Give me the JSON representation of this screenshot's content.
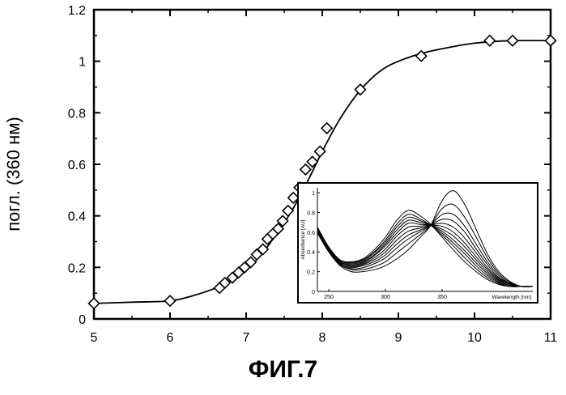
{
  "chart_data": [
    {
      "type": "scatter",
      "title": "",
      "caption": "ФИГ.7",
      "xlabel": "",
      "ylabel": "погл. (360 нм)",
      "xlim": [
        5,
        11
      ],
      "ylim": [
        0,
        1.2
      ],
      "xticks": [
        "5",
        "6",
        "7",
        "8",
        "9",
        "10",
        "11"
      ],
      "yticks": [
        "0",
        "0.2",
        "0.4",
        "0.6",
        "0.8",
        "1",
        "1.2"
      ],
      "marker": "diamond",
      "fit_curve": "sigmoid",
      "series": [
        {
          "x": [
            5.0,
            6.0,
            6.65,
            6.72,
            6.82,
            6.9,
            6.98,
            7.06,
            7.14,
            7.22,
            7.28,
            7.35,
            7.42,
            7.48,
            7.55,
            7.62,
            7.7,
            7.78,
            7.87,
            7.97,
            8.06,
            8.5,
            9.3,
            10.2,
            10.5,
            11.0
          ],
          "y": [
            0.06,
            0.07,
            0.12,
            0.14,
            0.16,
            0.18,
            0.2,
            0.22,
            0.25,
            0.27,
            0.31,
            0.33,
            0.35,
            0.38,
            0.42,
            0.47,
            0.51,
            0.58,
            0.61,
            0.65,
            0.74,
            0.89,
            1.02,
            1.08,
            1.08,
            1.08
          ]
        }
      ],
      "fit": {
        "x": [
          5.0,
          5.5,
          6.0,
          6.3,
          6.6,
          6.8,
          7.0,
          7.2,
          7.4,
          7.6,
          7.8,
          8.0,
          8.2,
          8.4,
          8.6,
          8.8,
          9.0,
          9.3,
          9.6,
          10.0,
          10.5,
          11.0
        ],
        "y": [
          0.06,
          0.065,
          0.07,
          0.09,
          0.12,
          0.15,
          0.19,
          0.25,
          0.33,
          0.42,
          0.53,
          0.65,
          0.76,
          0.85,
          0.92,
          0.97,
          1.0,
          1.03,
          1.05,
          1.07,
          1.08,
          1.08
        ]
      }
    },
    {
      "type": "line",
      "title": "",
      "xlabel": "Wavelength [nm]",
      "ylabel": "Absorbance [AU]",
      "xticks": [
        "250",
        "300",
        "350"
      ],
      "yticks": [
        "0",
        "0.2",
        "0.4",
        "0.6",
        "0.8",
        "1"
      ],
      "xlim": [
        240,
        430
      ],
      "ylim": [
        0,
        1.05
      ],
      "x": [
        240,
        250,
        260,
        270,
        280,
        290,
        300,
        310,
        320,
        330,
        340,
        350,
        360,
        370,
        380,
        390,
        400,
        410,
        420,
        430
      ],
      "series": [
        {
          "values": [
            0.65,
            0.45,
            0.32,
            0.3,
            0.33,
            0.42,
            0.55,
            0.72,
            0.82,
            0.77,
            0.68,
            0.55,
            0.42,
            0.3,
            0.2,
            0.12,
            0.07,
            0.05,
            0.05,
            0.05
          ]
        },
        {
          "values": [
            0.64,
            0.45,
            0.31,
            0.29,
            0.32,
            0.4,
            0.52,
            0.68,
            0.78,
            0.74,
            0.67,
            0.57,
            0.46,
            0.34,
            0.23,
            0.14,
            0.08,
            0.05,
            0.05,
            0.05
          ]
        },
        {
          "values": [
            0.64,
            0.44,
            0.31,
            0.29,
            0.31,
            0.39,
            0.5,
            0.65,
            0.75,
            0.72,
            0.67,
            0.59,
            0.49,
            0.38,
            0.26,
            0.16,
            0.09,
            0.05,
            0.05,
            0.05
          ]
        },
        {
          "values": [
            0.63,
            0.44,
            0.3,
            0.28,
            0.3,
            0.37,
            0.48,
            0.62,
            0.72,
            0.7,
            0.67,
            0.61,
            0.52,
            0.41,
            0.29,
            0.18,
            0.1,
            0.06,
            0.05,
            0.05
          ]
        },
        {
          "values": [
            0.63,
            0.43,
            0.3,
            0.27,
            0.29,
            0.36,
            0.46,
            0.59,
            0.69,
            0.68,
            0.67,
            0.63,
            0.56,
            0.45,
            0.32,
            0.2,
            0.11,
            0.06,
            0.05,
            0.05
          ]
        },
        {
          "values": [
            0.62,
            0.43,
            0.29,
            0.26,
            0.28,
            0.34,
            0.43,
            0.56,
            0.65,
            0.66,
            0.67,
            0.66,
            0.6,
            0.49,
            0.35,
            0.22,
            0.12,
            0.07,
            0.05,
            0.05
          ]
        },
        {
          "values": [
            0.62,
            0.42,
            0.29,
            0.25,
            0.27,
            0.32,
            0.4,
            0.52,
            0.61,
            0.64,
            0.67,
            0.69,
            0.65,
            0.54,
            0.39,
            0.24,
            0.13,
            0.07,
            0.05,
            0.05
          ]
        },
        {
          "values": [
            0.61,
            0.42,
            0.28,
            0.24,
            0.26,
            0.3,
            0.37,
            0.48,
            0.57,
            0.62,
            0.67,
            0.73,
            0.71,
            0.6,
            0.43,
            0.27,
            0.14,
            0.08,
            0.05,
            0.05
          ]
        },
        {
          "values": [
            0.6,
            0.41,
            0.28,
            0.23,
            0.24,
            0.28,
            0.34,
            0.44,
            0.53,
            0.6,
            0.67,
            0.78,
            0.78,
            0.66,
            0.48,
            0.3,
            0.16,
            0.08,
            0.05,
            0.05
          ]
        },
        {
          "values": [
            0.6,
            0.4,
            0.27,
            0.22,
            0.22,
            0.25,
            0.3,
            0.39,
            0.48,
            0.57,
            0.67,
            0.84,
            0.88,
            0.75,
            0.55,
            0.34,
            0.18,
            0.09,
            0.05,
            0.05
          ]
        },
        {
          "values": [
            0.59,
            0.4,
            0.26,
            0.2,
            0.2,
            0.22,
            0.26,
            0.33,
            0.42,
            0.54,
            0.67,
            0.92,
            1.02,
            0.88,
            0.63,
            0.38,
            0.2,
            0.1,
            0.05,
            0.05
          ]
        }
      ]
    }
  ]
}
